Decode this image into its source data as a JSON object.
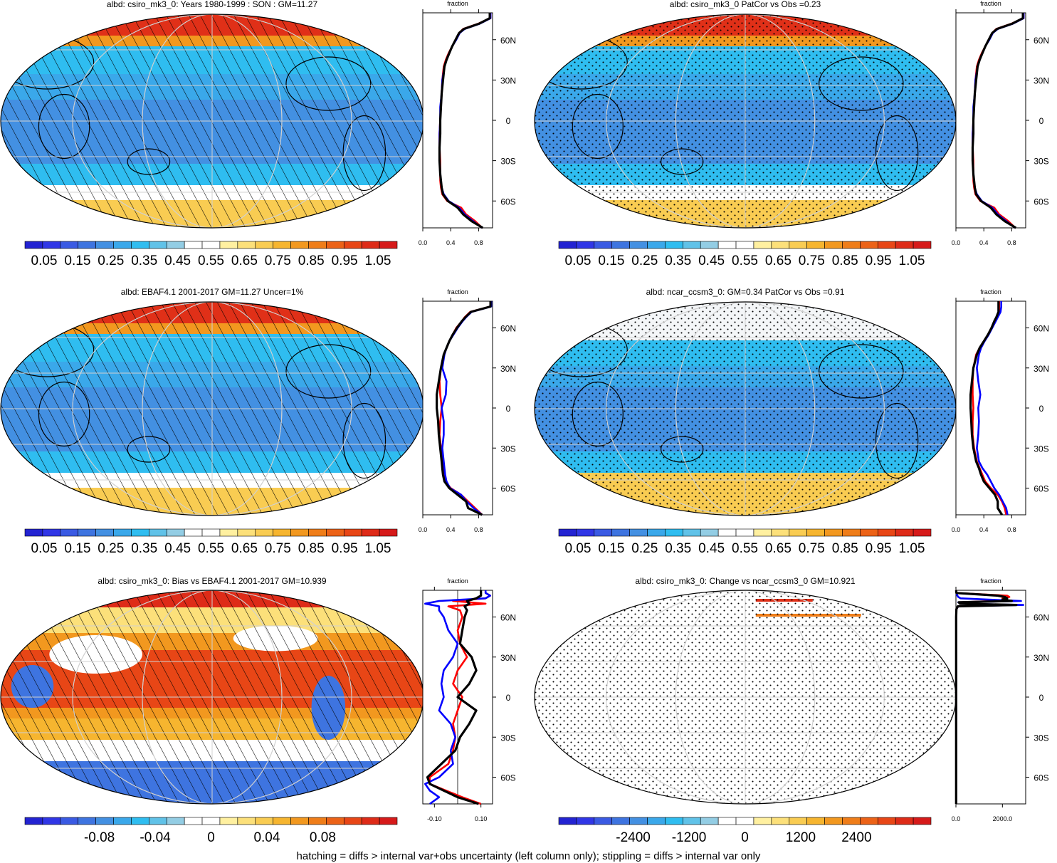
{
  "figure": {
    "caption": "hatching = diffs > internal var+obs uncertainty (left column only); stippling = diffs > internal var only",
    "colors": {
      "palette": [
        "#2323d2",
        "#3036e6",
        "#3a5ae3",
        "#3e74e0",
        "#4390e2",
        "#3aa8ea",
        "#2fbdf0",
        "#60c2e8",
        "#93cde4",
        "#ffffff",
        "#ffffff",
        "#fff0a0",
        "#fce07a",
        "#f9cc52",
        "#f6b52f",
        "#f2981f",
        "#ef7d19",
        "#ec6217",
        "#e84616",
        "#de2b18",
        "#d61a1a"
      ],
      "sea_ice_band": "#e03018",
      "zonal_model": "#000000",
      "zonal_obs": "#ff0000",
      "zonal_other": "#0000ff"
    }
  },
  "panels": [
    {
      "id": "p1",
      "title": "albd: csiro_mk3_0: Years 1980-1999 : SON : GM=11.27",
      "overlay": "hatch",
      "field": "mean",
      "colorbar_labels": [
        "0.05",
        "0.15",
        "0.25",
        "0.35",
        "0.45",
        "0.55",
        "0.65",
        "0.75",
        "0.85",
        "0.95",
        "1.05"
      ],
      "zonal": {
        "title": "fraction",
        "xticks": [
          "0.0",
          "0.4",
          "0.8"
        ],
        "xlim": [
          0,
          1.0
        ],
        "lat_labels": [
          "60N",
          "30N",
          "0",
          "30S",
          "60S"
        ]
      }
    },
    {
      "id": "p2",
      "title": "albd: csiro_mk3_0 PatCor vs Obs =0.23",
      "overlay": "stipple",
      "field": "mean",
      "colorbar_labels": [
        "0.05",
        "0.15",
        "0.25",
        "0.35",
        "0.45",
        "0.55",
        "0.65",
        "0.75",
        "0.85",
        "0.95",
        "1.05"
      ],
      "zonal": {
        "title": "fraction",
        "xticks": [
          "0.0",
          "0.4",
          "0.8"
        ],
        "xlim": [
          0,
          1.0
        ],
        "lat_labels": [
          "60N",
          "30N",
          "0",
          "30S",
          "60S"
        ]
      }
    },
    {
      "id": "p3",
      "title": "albd: EBAF4.1 2001-2017 GM=11.27 Uncer=1%",
      "overlay": "hatch",
      "field": "mean",
      "colorbar_labels": [
        "0.05",
        "0.15",
        "0.25",
        "0.35",
        "0.45",
        "0.55",
        "0.65",
        "0.75",
        "0.85",
        "0.95",
        "1.05"
      ],
      "zonal": {
        "title": "fraction",
        "xticks": [
          "0.0",
          "0.4",
          "0.8"
        ],
        "xlim": [
          0,
          1.0
        ],
        "lat_labels": [
          "60N",
          "30N",
          "0",
          "30S",
          "60S"
        ]
      }
    },
    {
      "id": "p4",
      "title": "albd: ncar_ccsm3_0: GM=0.34 PatCor vs Obs =0.91",
      "overlay": "stipple",
      "field": "mean",
      "colorbar_labels": [
        "0.05",
        "0.15",
        "0.25",
        "0.35",
        "0.45",
        "0.55",
        "0.65",
        "0.75",
        "0.85",
        "0.95",
        "1.05"
      ],
      "zonal": {
        "title": "fraction",
        "xticks": [
          "0.0",
          "0.4",
          "0.8"
        ],
        "xlim": [
          0,
          1.0
        ],
        "lat_labels": [
          "60N",
          "30N",
          "0",
          "30S",
          "60S"
        ]
      }
    },
    {
      "id": "p5",
      "title": "albd: csiro_mk3_0: Bias vs EBAF4.1 2001-2017  GM=10.939",
      "overlay": "hatch",
      "field": "bias",
      "colorbar_labels": [
        "-0.08",
        "-0.04",
        "0",
        "0.04",
        "0.08"
      ],
      "zonal": {
        "title": "fraction",
        "xticks": [
          "-0.10",
          "0.10"
        ],
        "xlim": [
          -0.15,
          0.15
        ],
        "lat_labels": [
          "60N",
          "30N",
          "0",
          "30S",
          "60S"
        ]
      }
    },
    {
      "id": "p6",
      "title": "albd: csiro_mk3_0: Change vs ncar_ccsm3_0 GM=10.921",
      "overlay": "stipple",
      "field": "change",
      "colorbar_labels": [
        "-2400",
        "-1200",
        "0",
        "1200",
        "2400"
      ],
      "zonal": {
        "title": "fraction",
        "xticks": [
          "0.0",
          "2000.0"
        ],
        "xlim": [
          0,
          3000
        ],
        "lat_labels": [
          "60N",
          "30N",
          "0",
          "30S",
          "60S"
        ]
      }
    }
  ],
  "chart_data": [
    {
      "type": "line",
      "title": "fraction",
      "panel": "albd: csiro_mk3_0: Years 1980-1999 : SON : GM=11.27",
      "y_lat": [
        -80,
        -75,
        -70,
        -65,
        -60,
        -55,
        -50,
        -45,
        -40,
        -30,
        -20,
        -10,
        0,
        10,
        20,
        30,
        40,
        45,
        50,
        55,
        60,
        65,
        68,
        72,
        76,
        80
      ],
      "series": [
        {
          "values": [
            0.85,
            0.75,
            0.62,
            0.55,
            0.35,
            0.28,
            0.26,
            0.25,
            0.25,
            0.25,
            0.24,
            0.24,
            0.25,
            0.26,
            0.27,
            0.28,
            0.3,
            0.33,
            0.37,
            0.42,
            0.47,
            0.52,
            0.58,
            0.8,
            0.97,
            0.97
          ]
        },
        {
          "values": [
            0.85,
            0.72,
            0.6,
            0.52,
            0.37,
            0.3,
            0.27,
            0.26,
            0.25,
            0.24,
            0.24,
            0.24,
            0.25,
            0.25,
            0.27,
            0.28,
            0.31,
            0.34,
            0.38,
            0.42,
            0.48,
            0.53,
            0.6,
            0.82,
            0.97,
            0.97
          ]
        },
        {
          "values": [
            0.86,
            0.7,
            0.58,
            0.5,
            0.36,
            0.29,
            0.27,
            0.26,
            0.25,
            0.24,
            0.24,
            0.25,
            0.25,
            0.26,
            0.27,
            0.29,
            0.31,
            0.34,
            0.38,
            0.42,
            0.47,
            0.52,
            0.59,
            0.81,
            0.96,
            0.96
          ]
        }
      ]
    },
    {
      "type": "line",
      "title": "fraction",
      "panel": "albd: csiro_mk3_0 PatCor vs Obs =0.23",
      "y_lat": [
        -80,
        -75,
        -70,
        -65,
        -60,
        -55,
        -50,
        -45,
        -40,
        -30,
        -20,
        -10,
        0,
        10,
        20,
        30,
        40,
        45,
        50,
        55,
        60,
        65,
        68,
        72,
        76,
        80
      ],
      "series": [
        {
          "values": [
            0.85,
            0.75,
            0.62,
            0.55,
            0.35,
            0.28,
            0.26,
            0.25,
            0.25,
            0.25,
            0.24,
            0.24,
            0.25,
            0.26,
            0.27,
            0.28,
            0.3,
            0.33,
            0.37,
            0.42,
            0.47,
            0.52,
            0.58,
            0.8,
            0.97,
            0.97
          ]
        },
        {
          "values": [
            0.85,
            0.72,
            0.6,
            0.52,
            0.37,
            0.3,
            0.27,
            0.26,
            0.25,
            0.24,
            0.24,
            0.24,
            0.25,
            0.25,
            0.27,
            0.28,
            0.31,
            0.34,
            0.38,
            0.42,
            0.48,
            0.53,
            0.6,
            0.82,
            0.97,
            0.97
          ]
        },
        {
          "values": [
            0.86,
            0.7,
            0.58,
            0.5,
            0.36,
            0.29,
            0.27,
            0.26,
            0.25,
            0.24,
            0.24,
            0.25,
            0.25,
            0.26,
            0.27,
            0.29,
            0.31,
            0.34,
            0.38,
            0.42,
            0.47,
            0.52,
            0.59,
            0.81,
            0.96,
            0.96
          ]
        }
      ]
    },
    {
      "type": "line",
      "title": "fraction",
      "panel": "albd: EBAF4.1 2001-2017 GM=11.27 Uncer=1%",
      "y_lat": [
        -80,
        -75,
        -70,
        -65,
        -60,
        -55,
        -50,
        -45,
        -40,
        -30,
        -20,
        -10,
        0,
        10,
        20,
        30,
        40,
        45,
        50,
        55,
        60,
        65,
        68,
        72,
        76,
        80
      ],
      "series": [
        {
          "values": [
            0.85,
            0.75,
            0.65,
            0.55,
            0.4,
            0.32,
            0.3,
            0.29,
            0.28,
            0.26,
            0.24,
            0.25,
            0.27,
            0.25,
            0.24,
            0.26,
            0.3,
            0.34,
            0.38,
            0.43,
            0.48,
            0.56,
            0.6,
            0.68,
            0.97,
            0.97
          ]
        },
        {
          "values": [
            0.85,
            0.73,
            0.63,
            0.55,
            0.39,
            0.34,
            0.32,
            0.31,
            0.3,
            0.28,
            0.3,
            0.3,
            0.27,
            0.33,
            0.34,
            0.28,
            0.31,
            0.34,
            0.38,
            0.44,
            0.5,
            0.57,
            0.62,
            0.7,
            0.98,
            0.98
          ]
        },
        {
          "values": [
            0.85,
            0.65,
            0.62,
            0.5,
            0.38,
            0.31,
            0.29,
            0.28,
            0.27,
            0.25,
            0.23,
            0.22,
            0.2,
            0.2,
            0.23,
            0.26,
            0.3,
            0.34,
            0.38,
            0.43,
            0.49,
            0.56,
            0.61,
            0.69,
            0.97,
            0.97
          ]
        }
      ]
    },
    {
      "type": "line",
      "title": "fraction",
      "panel": "albd: ncar_ccsm3_0: GM=0.34 PatCor vs Obs =0.91",
      "y_lat": [
        -80,
        -75,
        -70,
        -65,
        -60,
        -55,
        -50,
        -45,
        -40,
        -30,
        -20,
        -10,
        0,
        10,
        20,
        30,
        40,
        45,
        50,
        55,
        60,
        65,
        68,
        72,
        76,
        80
      ],
      "series": [
        {
          "values": [
            0.72,
            0.7,
            0.66,
            0.6,
            0.5,
            0.42,
            0.38,
            0.34,
            0.3,
            0.26,
            0.24,
            0.24,
            0.25,
            0.24,
            0.24,
            0.25,
            0.29,
            0.34,
            0.4,
            0.46,
            0.51,
            0.55,
            0.58,
            0.62,
            0.62,
            0.62
          ]
        },
        {
          "values": [
            0.74,
            0.72,
            0.67,
            0.62,
            0.55,
            0.5,
            0.45,
            0.38,
            0.33,
            0.3,
            0.32,
            0.33,
            0.32,
            0.35,
            0.32,
            0.3,
            0.33,
            0.36,
            0.41,
            0.47,
            0.52,
            0.57,
            0.6,
            0.64,
            0.65,
            0.65
          ]
        },
        {
          "values": [
            0.66,
            0.6,
            0.6,
            0.56,
            0.48,
            0.4,
            0.36,
            0.33,
            0.29,
            0.25,
            0.23,
            0.22,
            0.21,
            0.21,
            0.23,
            0.25,
            0.3,
            0.34,
            0.4,
            0.46,
            0.51,
            0.55,
            0.58,
            0.61,
            0.61,
            0.61
          ]
        }
      ]
    },
    {
      "type": "line",
      "title": "fraction",
      "panel": "albd: csiro_mk3_0: Bias vs EBAF4.1 2001-2017  GM=10.939",
      "y_lat": [
        -80,
        -75,
        -70,
        -65,
        -60,
        -50,
        -40,
        -30,
        -20,
        -10,
        0,
        10,
        20,
        30,
        40,
        50,
        60,
        65,
        68,
        70,
        72,
        74,
        76,
        78,
        80
      ],
      "series": [
        {
          "values": [
            0.1,
            0.02,
            -0.05,
            -0.12,
            -0.12,
            -0.04,
            -0.02,
            -0.01,
            -0.02,
            0.0,
            0.02,
            -0.02,
            0.0,
            0.04,
            0.01,
            0.0,
            0.02,
            0.01,
            -0.04,
            0.12,
            -0.02,
            0.12,
            0.14,
            0.12,
            0.12
          ]
        },
        {
          "values": [
            -0.12,
            -0.08,
            -0.12,
            -0.14,
            -0.08,
            -0.02,
            -0.03,
            -0.01,
            -0.03,
            -0.08,
            -0.06,
            -0.07,
            -0.06,
            -0.02,
            0.0,
            -0.04,
            -0.06,
            -0.08,
            -0.08,
            -0.14,
            -0.08,
            0.12,
            0.14,
            0.12,
            0.12
          ]
        },
        {
          "values": [
            0.09,
            0.0,
            -0.06,
            -0.12,
            -0.13,
            -0.07,
            -0.01,
            0.01,
            0.05,
            0.08,
            0.0,
            0.05,
            0.08,
            0.06,
            0.01,
            0.02,
            0.03,
            0.04,
            0.03,
            0.05,
            0.04,
            0.08,
            0.1,
            0.1,
            0.1
          ]
        }
      ]
    },
    {
      "type": "line",
      "title": "fraction",
      "panel": "albd: csiro_mk3_0: Change vs ncar_ccsm3_0 GM=10.921",
      "y_lat": [
        -80,
        -60,
        -40,
        -20,
        0,
        20,
        40,
        60,
        66,
        68,
        69,
        70,
        71,
        72,
        73,
        74,
        75,
        76,
        78,
        80
      ],
      "series": [
        {
          "values": [
            10,
            10,
            10,
            10,
            10,
            10,
            10,
            10,
            20,
            100,
            2400,
            200,
            150,
            1600,
            2200,
            2000,
            2300,
            2200,
            30,
            10
          ]
        },
        {
          "values": [
            10,
            10,
            10,
            10,
            10,
            10,
            10,
            10,
            20,
            100,
            2900,
            200,
            100,
            2800,
            1400,
            200,
            100,
            60,
            20,
            10
          ]
        },
        {
          "values": [
            10,
            10,
            10,
            10,
            10,
            10,
            10,
            10,
            20,
            80,
            2600,
            180,
            120,
            2400,
            2000,
            2200,
            2100,
            1800,
            20,
            10
          ]
        }
      ]
    }
  ]
}
